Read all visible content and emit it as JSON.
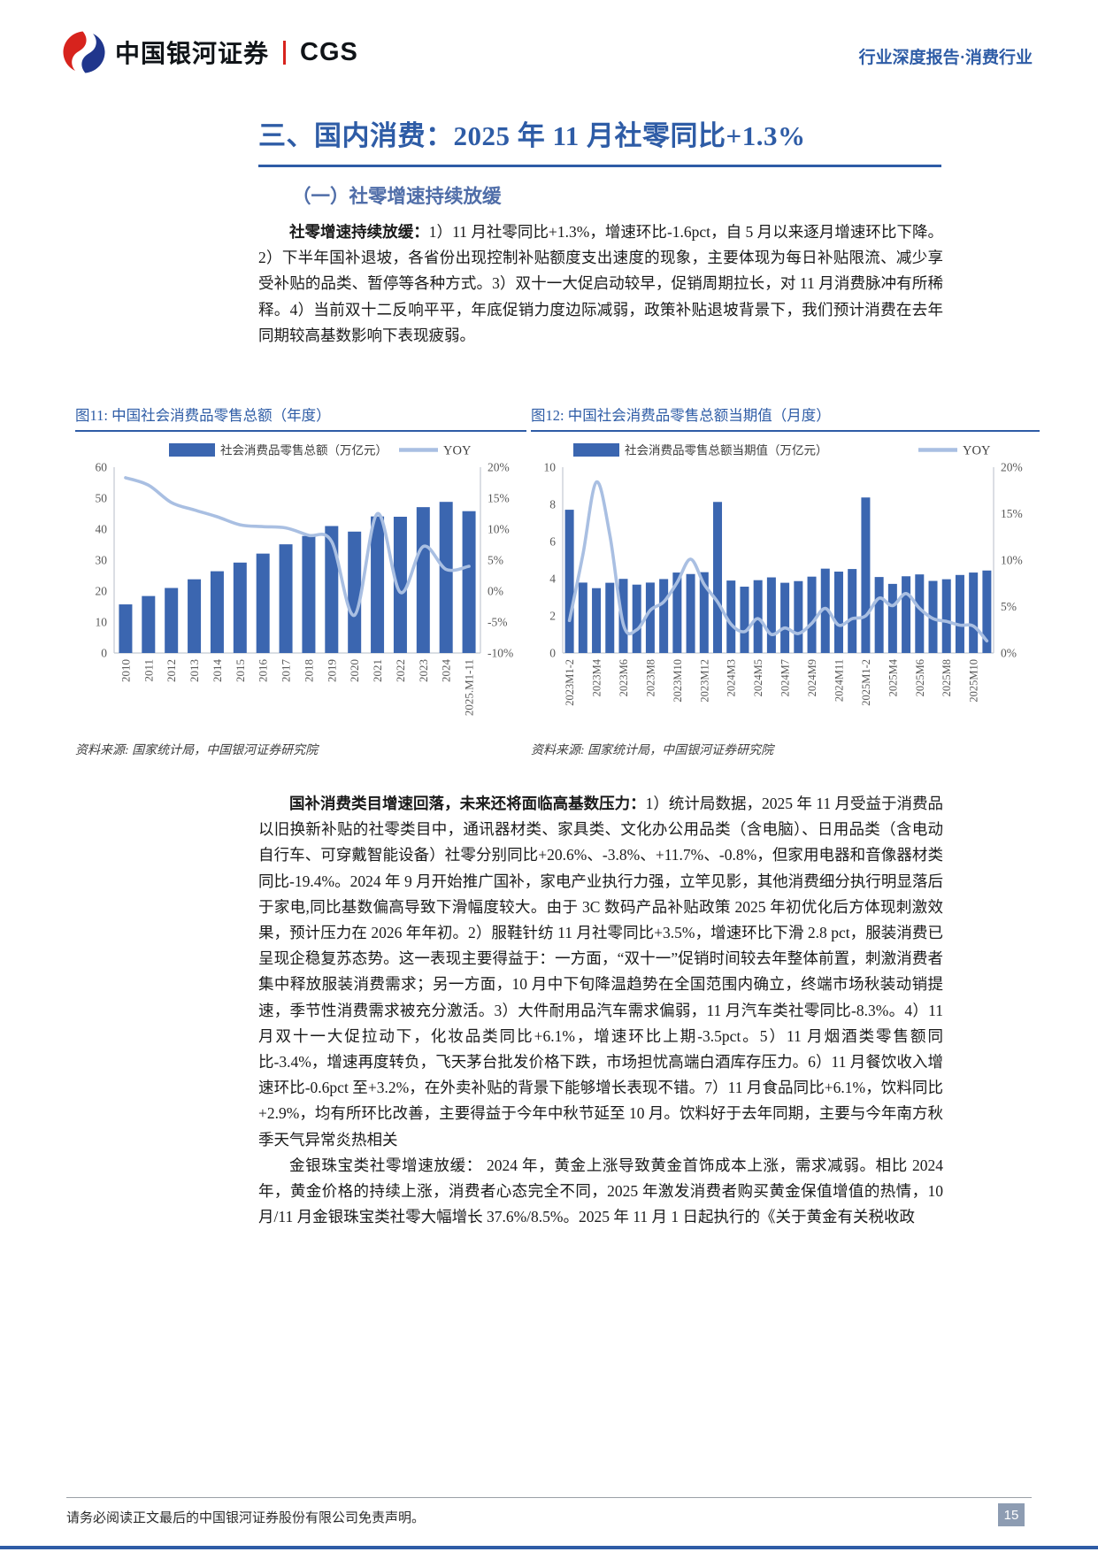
{
  "header": {
    "logo_cn": "中国银河证券",
    "logo_en": "CGS",
    "report_type": "行业深度报告·消费行业"
  },
  "section": {
    "title": "三、国内消费：2025 年 11 月社零同比+1.3%",
    "subtitle": "（一）社零增速持续放缓"
  },
  "paragraphs": [
    {
      "lead": "社零增速持续放缓：",
      "text": "1）11 月社零同比+1.3%，增速环比-1.6pct，自 5 月以来逐月增速环比下降。2）下半年国补退坡，各省份出现控制补贴额度支出速度的现象，主要体现为每日补贴限流、减少享受补贴的品类、暂停等各种方式。3）双十一大促启动较早，促销周期拉长，对 11 月消费脉冲有所稀释。4）当前双十二反响平平，年底促销力度边际减弱，政策补贴退坡背景下，我们预计消费在去年同期较高基数影响下表现疲弱。"
    },
    {
      "lead": "国补消费类目增速回落，未来还将面临高基数压力：",
      "text": "1）统计局数据，2025 年 11 月受益于消费品以旧换新补贴的社零类目中，通讯器材类、家具类、文化办公用品类（含电脑）、日用品类（含电动自行车、可穿戴智能设备）社零分别同比+20.6%、-3.8%、+11.7%、-0.8%，但家用电器和音像器材类同比-19.4%。2024 年 9 月开始推广国补，家电产业执行力强，立竿见影，其他消费细分执行明显落后于家电,同比基数偏高导致下滑幅度较大。由于 3C 数码产品补贴政策 2025 年初优化后方体现刺激效果，预计压力在 2026 年年初。2）服鞋针纺 11 月社零同比+3.5%，增速环比下滑 2.8 pct，服装消费已呈现企稳复苏态势。这一表现主要得益于：一方面，“双十一”促销时间较去年整体前置，刺激消费者集中释放服装消费需求；另一方面，10 月中下旬降温趋势在全国范围内确立，终端市场秋装动销提速，季节性消费需求被充分激活。3）大件耐用品汽车需求偏弱，11 月汽车类社零同比-8.3%。4）11 月双十一大促拉动下，化妆品类同比+6.1%，增速环比上期-3.5pct。5）11 月烟酒类零售额同比-3.4%，增速再度转负，飞天茅台批发价格下跌，市场担忧高端白酒库存压力。6）11 月餐饮收入增速环比-0.6pct 至+3.2%，在外卖补贴的背景下能够增长表现不错。7）11 月食品同比+6.1%，饮料同比+2.9%，均有所环比改善，主要得益于今年中秋节延至 10 月。饮料好于去年同期，主要与今年南方秋季天气异常炎热相关"
    },
    {
      "lead": "金银珠宝类社零增速放缓：",
      "text": " 2024 年，黄金上涨导致黄金首饰成本上涨，需求减弱。相比 2024 年，黄金价格的持续上涨，消费者心态完全不同，2025 年激发消费者购买黄金保值增值的热情，10 月/11 月金银珠宝类社零大幅增长 37.6%/8.5%。2025 年 11 月 1 日起执行的《关于黄金有关税收政"
    }
  ],
  "figures": [
    {
      "title": "图11: 中国社会消费品零售总额（年度）",
      "source": "资料来源: 国家统计局，中国银河证券研究院"
    },
    {
      "title": "图12: 中国社会消费品零售总额当期值（月度）",
      "source": "资料来源: 国家统计局，中国银河证券研究院"
    }
  ],
  "footer": {
    "disclaimer": "请务必阅读正文最后的中国银河证券股份有限公司免责声明。",
    "page_number": "15"
  },
  "colors": {
    "accent_blue": "#2e5ca6",
    "bar_blue": "#3b66b0",
    "line_blue": "#a9bfe2",
    "logo_red": "#d7231d",
    "logo_navy": "#20368c",
    "axis_gray": "#c3c9d2",
    "tick_gray": "#595959"
  },
  "chart_data": [
    {
      "type": "bar",
      "title": "图11: 中国社会消费品零售总额（年度）",
      "categories": [
        "2010",
        "2011",
        "2012",
        "2013",
        "2014",
        "2015",
        "2016",
        "2017",
        "2018",
        "2019",
        "2020",
        "2021",
        "2022",
        "2023",
        "2024",
        "2025.M1-11"
      ],
      "series": [
        {
          "name": "社会消费品零售总额（万亿元）",
          "type": "bar",
          "axis": "left",
          "values": [
            15.7,
            18.4,
            21.0,
            23.8,
            26.4,
            29.2,
            32.1,
            35.1,
            37.8,
            41.0,
            39.2,
            44.1,
            44.0,
            47.1,
            48.8,
            45.8
          ]
        },
        {
          "name": "YOY",
          "type": "line",
          "axis": "right",
          "values": [
            18.3,
            17.1,
            14.3,
            13.1,
            12.0,
            10.7,
            10.4,
            10.2,
            9.0,
            8.0,
            -3.9,
            12.5,
            -0.2,
            7.2,
            3.5,
            4.0
          ]
        }
      ],
      "left_axis": {
        "min": 0,
        "max": 60,
        "step": 10
      },
      "right_axis": {
        "min": -10,
        "max": 20,
        "step": 5,
        "suffix": "%"
      },
      "legend_position": "top",
      "grid": false
    },
    {
      "type": "bar",
      "title": "图12: 中国社会消费品零售总额当期值（月度）",
      "categories": [
        "2023M1-2",
        "2023M3",
        "2023M4",
        "2023M5",
        "2023M6",
        "2023M7",
        "2023M8",
        "2023M9",
        "2023M10",
        "2023M11",
        "2023M12",
        "2024M1-2",
        "2024M3",
        "2024M4",
        "2024M5",
        "2024M6",
        "2024M7",
        "2024M8",
        "2024M9",
        "2024M10",
        "2024M11",
        "2024M12",
        "2025M1-2",
        "2025M3",
        "2025M4",
        "2025M5",
        "2025M6",
        "2025M7",
        "2025M8",
        "2025M9",
        "2025M10",
        "2025M11"
      ],
      "series": [
        {
          "name": "社会消费品零售总额当期值（万亿元）",
          "type": "bar",
          "axis": "left",
          "values": [
            7.71,
            3.79,
            3.49,
            3.78,
            3.99,
            3.68,
            3.79,
            3.98,
            4.33,
            4.25,
            4.35,
            8.13,
            3.9,
            3.57,
            3.92,
            4.07,
            3.78,
            3.87,
            4.11,
            4.54,
            4.38,
            4.52,
            8.37,
            4.09,
            3.72,
            4.13,
            4.23,
            3.88,
            3.97,
            4.2,
            4.33,
            4.44
          ]
        },
        {
          "name": "YOY",
          "type": "line",
          "axis": "right",
          "values": [
            3.5,
            10.6,
            18.4,
            12.7,
            3.1,
            2.5,
            4.6,
            5.5,
            7.6,
            10.1,
            7.4,
            5.5,
            3.1,
            2.3,
            3.7,
            2.0,
            2.7,
            2.1,
            3.2,
            4.8,
            3.0,
            3.7,
            4.0,
            5.9,
            5.1,
            6.4,
            4.8,
            3.7,
            3.4,
            3.0,
            2.9,
            1.3
          ]
        }
      ],
      "left_axis": {
        "min": 0,
        "max": 10,
        "step": 2
      },
      "right_axis": {
        "min": 0,
        "max": 20,
        "step": 5,
        "suffix": "%"
      },
      "legend_position": "top",
      "grid": false
    }
  ]
}
